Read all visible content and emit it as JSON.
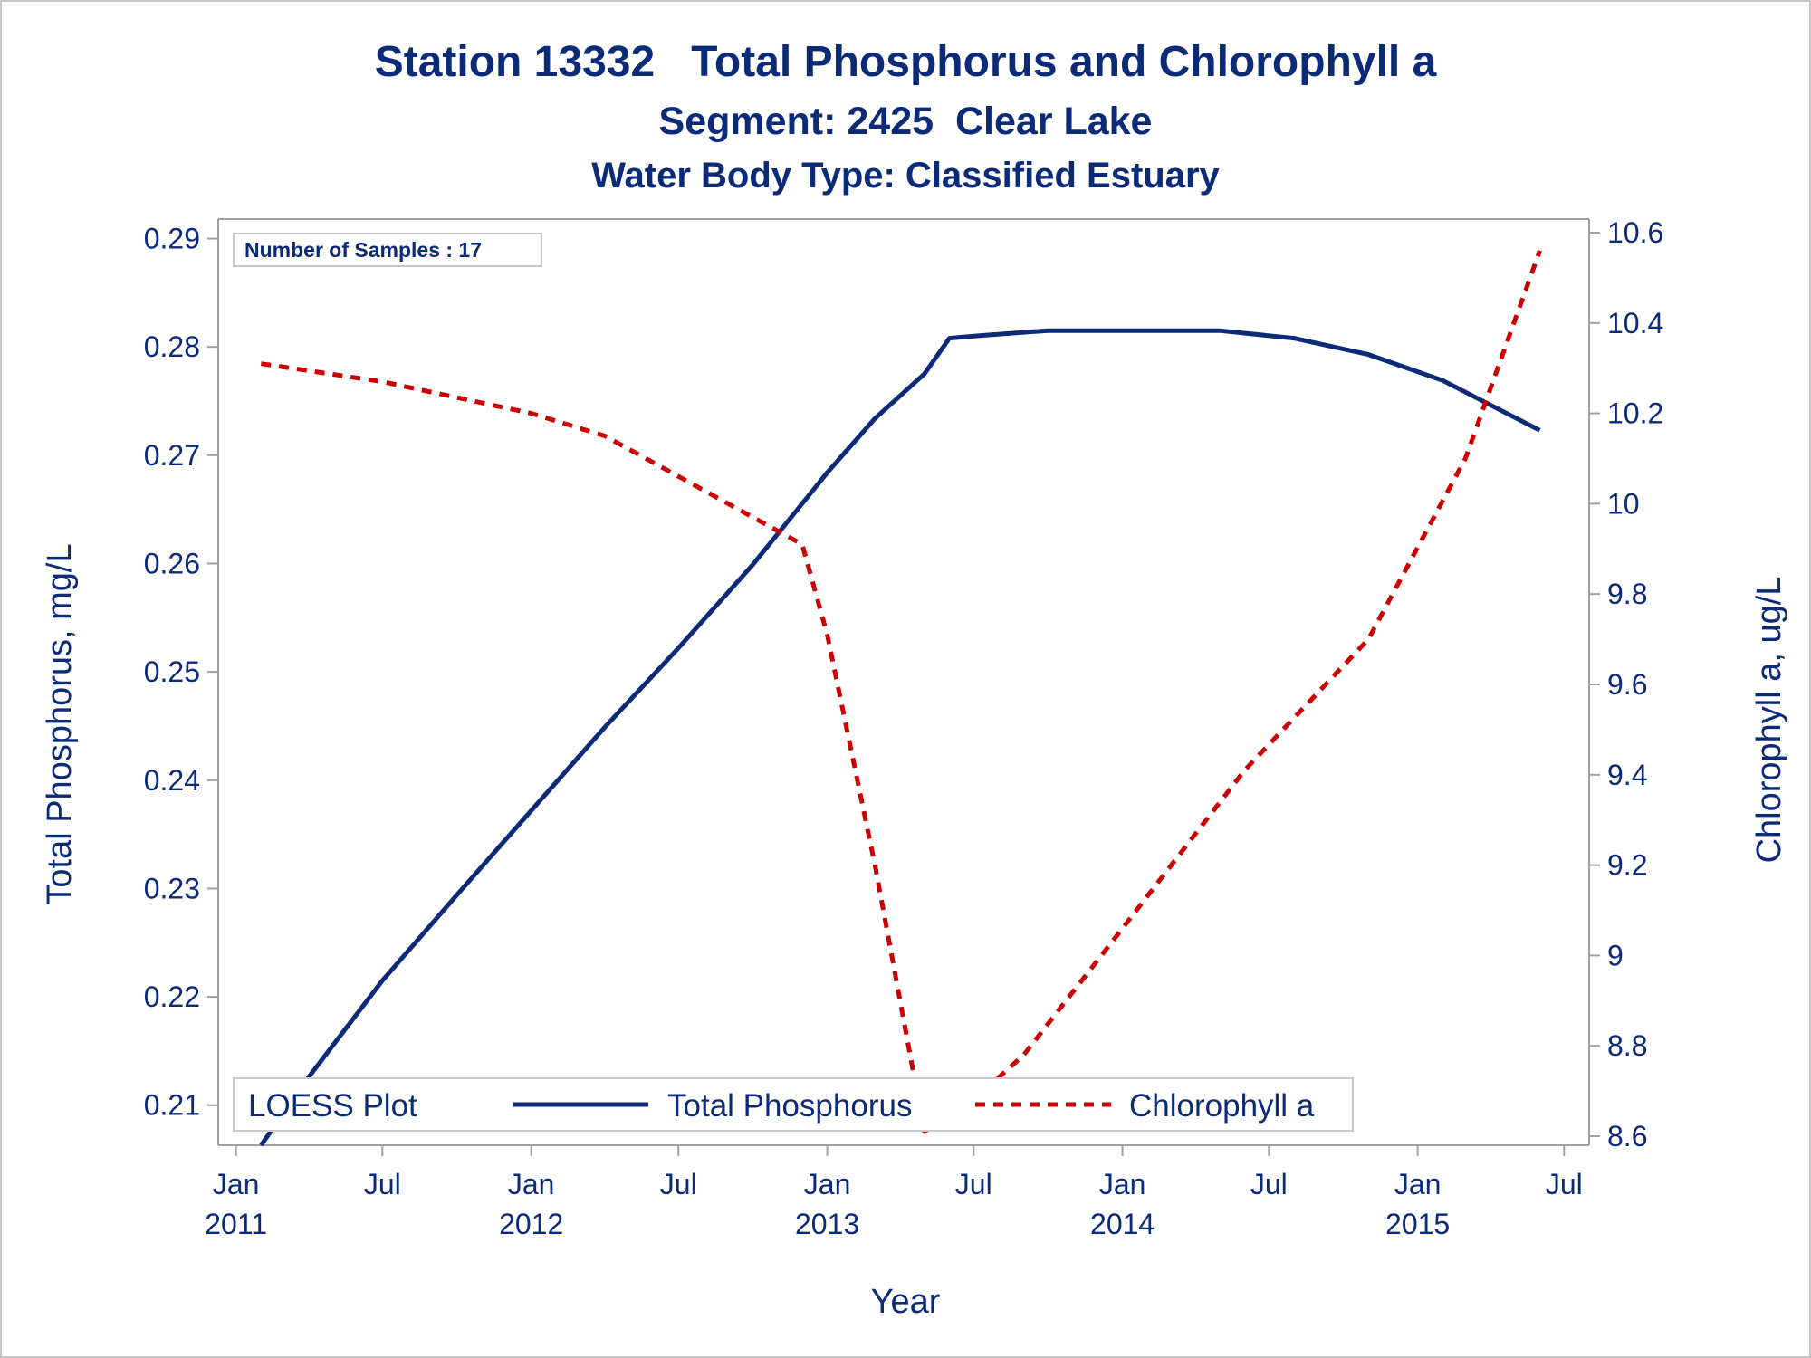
{
  "chart_data": {
    "type": "line",
    "title": "Station 13332   Total Phosphorus and Chlorophyll a",
    "subtitle": "Segment: 2425  Clear Lake",
    "subtitle2": "Water Body Type: Classified Estuary",
    "xlabel": "Year",
    "ylabel_left": "Total Phosphorus, mg/L",
    "ylabel_right": "Chlorophyll a, ug/L",
    "x_ticks": [
      {
        "date": "2011-01-01",
        "label1": "Jan",
        "label2": "2011"
      },
      {
        "date": "2011-07-01",
        "label1": "Jul",
        "label2": ""
      },
      {
        "date": "2012-01-01",
        "label1": "Jan",
        "label2": "2012"
      },
      {
        "date": "2012-07-01",
        "label1": "Jul",
        "label2": ""
      },
      {
        "date": "2013-01-01",
        "label1": "Jan",
        "label2": "2013"
      },
      {
        "date": "2013-07-01",
        "label1": "Jul",
        "label2": ""
      },
      {
        "date": "2014-01-01",
        "label1": "Jan",
        "label2": "2014"
      },
      {
        "date": "2014-07-01",
        "label1": "Jul",
        "label2": ""
      },
      {
        "date": "2015-01-01",
        "label1": "Jan",
        "label2": "2015"
      },
      {
        "date": "2015-07-01",
        "label1": "Jul",
        "label2": ""
      }
    ],
    "xlim": [
      "2010-12-10",
      "2015-08-01"
    ],
    "ylim_left": [
      0.2063,
      0.2918
    ],
    "ylim_right": [
      8.58,
      10.63
    ],
    "yticks_left": [
      0.21,
      0.22,
      0.23,
      0.24,
      0.25,
      0.26,
      0.27,
      0.28,
      0.29
    ],
    "yticks_left_labels": [
      "0.21",
      "0.22",
      "0.23",
      "0.24",
      "0.25",
      "0.26",
      "0.27",
      "0.28",
      "0.29"
    ],
    "yticks_right": [
      8.6,
      8.8,
      9.0,
      9.2,
      9.4,
      9.6,
      9.8,
      10.0,
      10.2,
      10.4,
      10.6
    ],
    "yticks_right_labels": [
      "8.6",
      "8.8",
      "9",
      "9.2",
      "9.4",
      "9.6",
      "9.8",
      "10",
      "10.2",
      "10.4",
      "10.6"
    ],
    "series": [
      {
        "name": "Total Phosphorus",
        "axis": "left",
        "color": "#0b2a78",
        "style": "solid",
        "points": [
          [
            "2011-02-01",
            0.2063
          ],
          [
            "2011-04-01",
            0.2126
          ],
          [
            "2011-07-01",
            0.2215
          ],
          [
            "2011-10-01",
            0.2294
          ],
          [
            "2012-01-01",
            0.2372
          ],
          [
            "2012-04-01",
            0.2449
          ],
          [
            "2012-07-01",
            0.2522
          ],
          [
            "2012-10-01",
            0.2599
          ],
          [
            "2013-01-01",
            0.2684
          ],
          [
            "2013-03-01",
            0.2734
          ],
          [
            "2013-05-01",
            0.2775
          ],
          [
            "2013-06-01",
            0.2808
          ],
          [
            "2013-07-01",
            0.281
          ],
          [
            "2013-10-01",
            0.2815
          ],
          [
            "2014-01-01",
            0.2815
          ],
          [
            "2014-05-01",
            0.2815
          ],
          [
            "2014-08-01",
            0.2808
          ],
          [
            "2014-11-01",
            0.2793
          ],
          [
            "2015-02-01",
            0.2769
          ],
          [
            "2015-06-01",
            0.2723
          ]
        ]
      },
      {
        "name": "Chlorophyll a",
        "axis": "right",
        "color": "#cc0000",
        "style": "dashed",
        "points": [
          [
            "2011-02-01",
            10.31
          ],
          [
            "2011-07-01",
            10.27
          ],
          [
            "2012-01-01",
            10.2
          ],
          [
            "2012-04-01",
            10.15
          ],
          [
            "2012-08-01",
            10.03
          ],
          [
            "2012-12-01",
            9.91
          ],
          [
            "2013-01-01",
            9.71
          ],
          [
            "2013-03-01",
            9.2
          ],
          [
            "2013-05-01",
            8.61
          ],
          [
            "2013-07-01",
            8.68
          ],
          [
            "2013-09-01",
            8.78
          ],
          [
            "2014-01-01",
            9.06
          ],
          [
            "2014-06-01",
            9.41
          ],
          [
            "2014-11-01",
            9.7
          ],
          [
            "2015-03-01",
            10.1
          ],
          [
            "2015-06-01",
            10.56
          ]
        ]
      }
    ],
    "inset_text": "Number of Samples : 17",
    "legend": {
      "title": "LOESS Plot",
      "position": "bottom-left inside",
      "entries": [
        "Total Phosphorus",
        "Chlorophyll a"
      ]
    },
    "grid": false
  }
}
